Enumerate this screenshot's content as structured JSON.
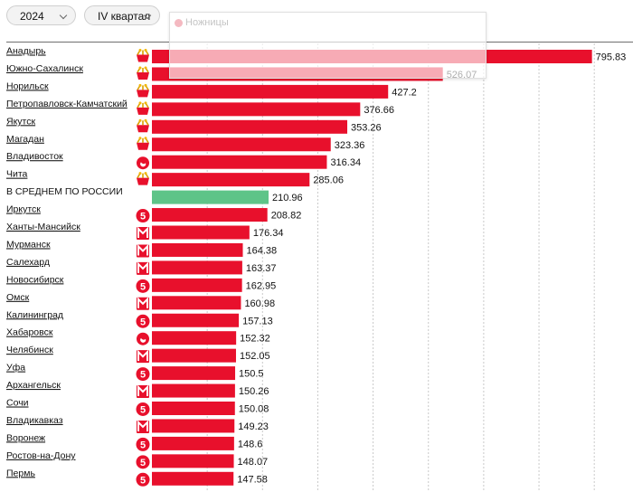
{
  "filters": {
    "year": "2024",
    "quarter": "IV квартал"
  },
  "popup": {
    "title": "Ножницы"
  },
  "colors": {
    "bar": "#e8102c",
    "average_bar": "#5ec488",
    "grid": "#c9c9c9"
  },
  "chart_data": {
    "type": "bar",
    "orientation": "horizontal",
    "title": "",
    "xlabel": "",
    "ylabel": "",
    "xlim": [
      0,
      870
    ],
    "categories": [
      "Анадырь",
      "Южно-Сахалинск",
      "Норильск",
      "Петропавловск-Камчатский",
      "Якутск",
      "Магадан",
      "Владивосток",
      "Чита",
      "В СРЕДНЕМ ПО РОССИИ",
      "Иркутск",
      "Ханты-Мансийск",
      "Мурманск",
      "Салехард",
      "Новосибирск",
      "Омск",
      "Калининград",
      "Хабаровск",
      "Челябинск",
      "Уфа",
      "Архангельск",
      "Сочи",
      "Владикавказ",
      "Воронеж",
      "Ростов-на-Дону",
      "Пермь"
    ],
    "values": [
      795.83,
      526.07,
      427.2,
      376.66,
      353.26,
      323.36,
      316.34,
      285.06,
      210.96,
      208.82,
      176.34,
      164.38,
      163.37,
      162.95,
      160.98,
      157.13,
      152.32,
      152.05,
      150.5,
      150.26,
      150.08,
      149.23,
      148.6,
      148.07,
      147.58
    ],
    "value_labels": [
      "795.83",
      "526.07",
      "427.2",
      "376.66",
      "353.26",
      "323.36",
      "316.34",
      "285.06",
      "210.96",
      "208.82",
      "176.34",
      "164.38",
      "163.37",
      "162.95",
      "160.98",
      "157.13",
      "152.32",
      "152.05",
      "150.5",
      "150.26",
      "150.08",
      "149.23",
      "148.6",
      "148.07",
      "147.58"
    ],
    "store_icons": [
      "basket-icon",
      "basket-icon",
      "basket-icon",
      "basket-icon",
      "basket-icon",
      "basket-icon",
      "apple-icon",
      "basket-icon",
      "",
      "pyaterochka-icon",
      "magnit-icon",
      "magnit-icon",
      "magnit-icon",
      "pyaterochka-icon",
      "magnit-icon",
      "pyaterochka-icon",
      "apple-icon",
      "magnit-icon",
      "pyaterochka-icon",
      "magnit-icon",
      "pyaterochka-icon",
      "magnit-icon",
      "pyaterochka-icon",
      "pyaterochka-icon",
      "pyaterochka-icon"
    ],
    "average_category": "В СРЕДНЕМ ПО РОССИИ",
    "grid": true
  }
}
